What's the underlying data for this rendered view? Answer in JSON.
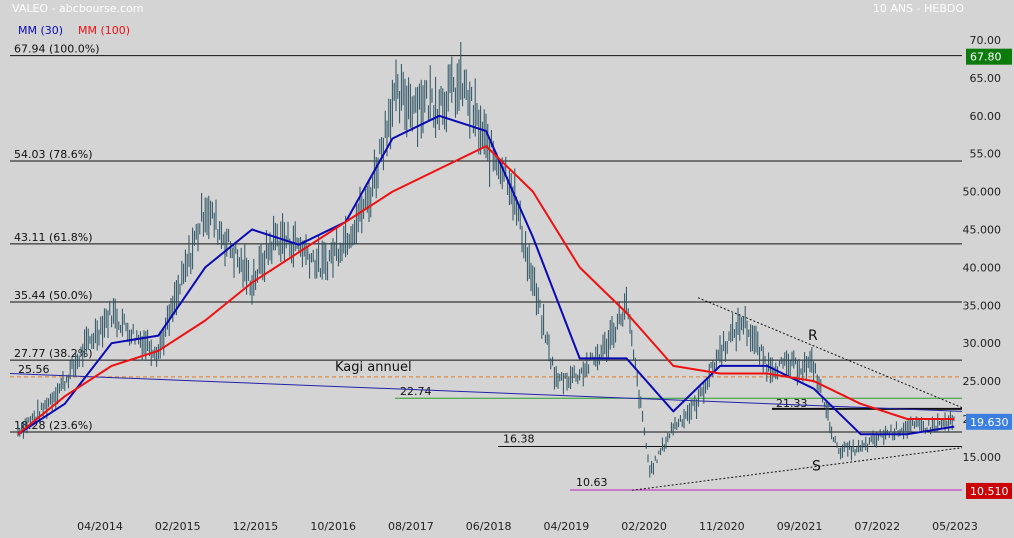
{
  "header": {
    "source": "VALEO - abcbourse.com",
    "period": "10 ANS - HEBDO",
    "ma30_label": "MM (30)",
    "ma100_label": "MM (100)"
  },
  "colors": {
    "background": "#d4d4d4",
    "price": "#2a5262",
    "ma30": "#0a0ab4",
    "ma100": "#ee1111",
    "kagi": "#e07a20",
    "support": "#2e9e2e",
    "low": "#c020c0",
    "trend": "#2222aa"
  },
  "chart_data": {
    "type": "line",
    "title": "VALEO - abcbourse.com",
    "subtitle": "10 ANS - HEBDO",
    "x_ticks": [
      "04/2014",
      "02/2015",
      "12/2015",
      "10/2016",
      "08/2017",
      "06/2018",
      "04/2019",
      "02/2020",
      "11/2020",
      "09/2021",
      "07/2022",
      "05/2023"
    ],
    "y_ticks": [
      "70.00",
      "65.00",
      "60.00",
      "55.00",
      "50.000",
      "45.000",
      "40.000",
      "35.000",
      "30.000",
      "25.000",
      "20.000",
      "15.000"
    ],
    "ylim": [
      9,
      73
    ],
    "grid": false,
    "series": [
      {
        "name": "",
        "kind": "weekly-bars",
        "x": [
          "2013-06",
          "2013-09",
          "2013-12",
          "2014-03",
          "2014-06",
          "2014-09",
          "2014-12",
          "2015-03",
          "2015-06",
          "2015-09",
          "2015-12",
          "2016-03",
          "2016-06",
          "2016-09",
          "2016-12",
          "2017-03",
          "2017-06",
          "2017-09",
          "2017-12",
          "2018-03",
          "2018-06",
          "2018-09",
          "2018-12",
          "2019-03",
          "2019-06",
          "2019-09",
          "2019-12",
          "2020-03",
          "2020-06",
          "2020-09",
          "2020-12",
          "2021-03",
          "2021-06",
          "2021-09",
          "2021-12",
          "2022-03",
          "2022-06",
          "2022-09",
          "2022-12",
          "2023-03",
          "2023-06"
        ],
        "values": [
          18.5,
          21,
          25,
          30,
          34,
          31,
          29,
          38,
          48,
          43,
          38,
          44,
          43,
          40,
          44,
          49,
          62,
          62,
          62,
          64,
          56,
          52,
          38,
          25,
          26,
          29,
          35,
          13,
          19,
          22,
          29,
          33,
          27,
          27,
          27,
          16,
          16,
          18,
          19,
          19,
          19.63
        ]
      },
      {
        "name": "MM (30)",
        "x": [
          "2013-06",
          "2013-12",
          "2014-06",
          "2014-12",
          "2015-06",
          "2015-12",
          "2016-06",
          "2016-12",
          "2017-06",
          "2017-12",
          "2018-06",
          "2018-12",
          "2019-06",
          "2019-12",
          "2020-06",
          "2020-12",
          "2021-06",
          "2021-12",
          "2022-06",
          "2022-12",
          "2023-06"
        ],
        "values": [
          18,
          22,
          30,
          31,
          40,
          45,
          43,
          46,
          57,
          60,
          58,
          44,
          28,
          28,
          21,
          27,
          27,
          24,
          18,
          18,
          19
        ]
      },
      {
        "name": "MM (100)",
        "x": [
          "2013-06",
          "2013-12",
          "2014-06",
          "2014-12",
          "2015-06",
          "2015-12",
          "2016-06",
          "2016-12",
          "2017-06",
          "2017-12",
          "2018-06",
          "2018-12",
          "2019-06",
          "2019-12",
          "2020-06",
          "2020-12",
          "2021-06",
          "2021-12",
          "2022-06",
          "2022-12",
          "2023-06"
        ],
        "values": [
          18,
          23,
          27,
          29,
          33,
          38,
          42,
          46,
          50,
          53,
          56,
          50,
          40,
          34,
          27,
          26,
          26,
          25,
          22,
          20,
          20
        ]
      }
    ],
    "fib_levels": [
      {
        "value": 67.94,
        "label": "67.94  (100.0%)"
      },
      {
        "value": 54.03,
        "label": "54.03  (78.6%)"
      },
      {
        "value": 43.11,
        "label": "43.11  (61.8%)"
      },
      {
        "value": 35.44,
        "label": "35.44  (50.0%)"
      },
      {
        "value": 27.77,
        "label": "27.77  (38.2%)"
      },
      {
        "value": 18.28,
        "label": "18.28  (23.6%)"
      }
    ],
    "horizontal_levels": [
      {
        "value": 25.56,
        "label": "25.56"
      },
      {
        "value": 22.74,
        "label": "22.74"
      },
      {
        "value": 21.33,
        "label": "21.33"
      },
      {
        "value": 16.38,
        "label": "16.38"
      },
      {
        "value": 10.63,
        "label": "10.63"
      }
    ],
    "annotations": {
      "kagi": "Kagi annuel",
      "resistance": "R",
      "support": "S"
    },
    "price_tags": [
      {
        "value": 67.8,
        "label": "67.80",
        "color": "#0d7a0d"
      },
      {
        "value": 19.63,
        "label": "19.630",
        "color": "#3b7fe0"
      },
      {
        "value": 10.51,
        "label": "10.510",
        "color": "#cc0000"
      }
    ]
  }
}
